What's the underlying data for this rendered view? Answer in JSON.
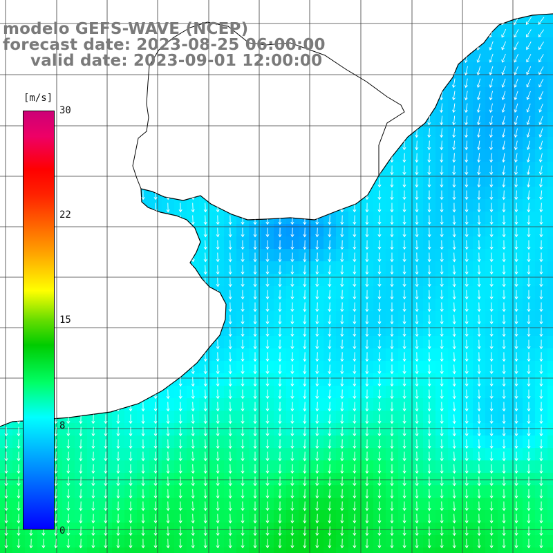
{
  "titles": {
    "line1": "modelo GEFS-WAVE (NCEP)",
    "line2": "forecast date: 2023-08-25 06:00:00",
    "line3": "valid date: 2023-09-01 12:00:00"
  },
  "colorbar": {
    "unit": "[m/s]",
    "ticks": [
      "30",
      "22",
      "15",
      "8",
      "0"
    ],
    "min": 0,
    "max": 30
  },
  "map": {
    "variable": "wind speed",
    "projection": "lat-lon grid",
    "grid_lines": true,
    "land_color": "#ffffff",
    "wind_direction": "mostly southward (toward south / south-west)",
    "speed_range_observed_ms": [
      4,
      12
    ],
    "high_speed_area": "south-central offshore",
    "low_speed_area": "coastal estuary and eastern edge"
  },
  "colors": {
    "title_text": "#7a7a7a",
    "coastline": "#000000",
    "grid": "#3a3a3a",
    "arrows": "#ffffff"
  }
}
